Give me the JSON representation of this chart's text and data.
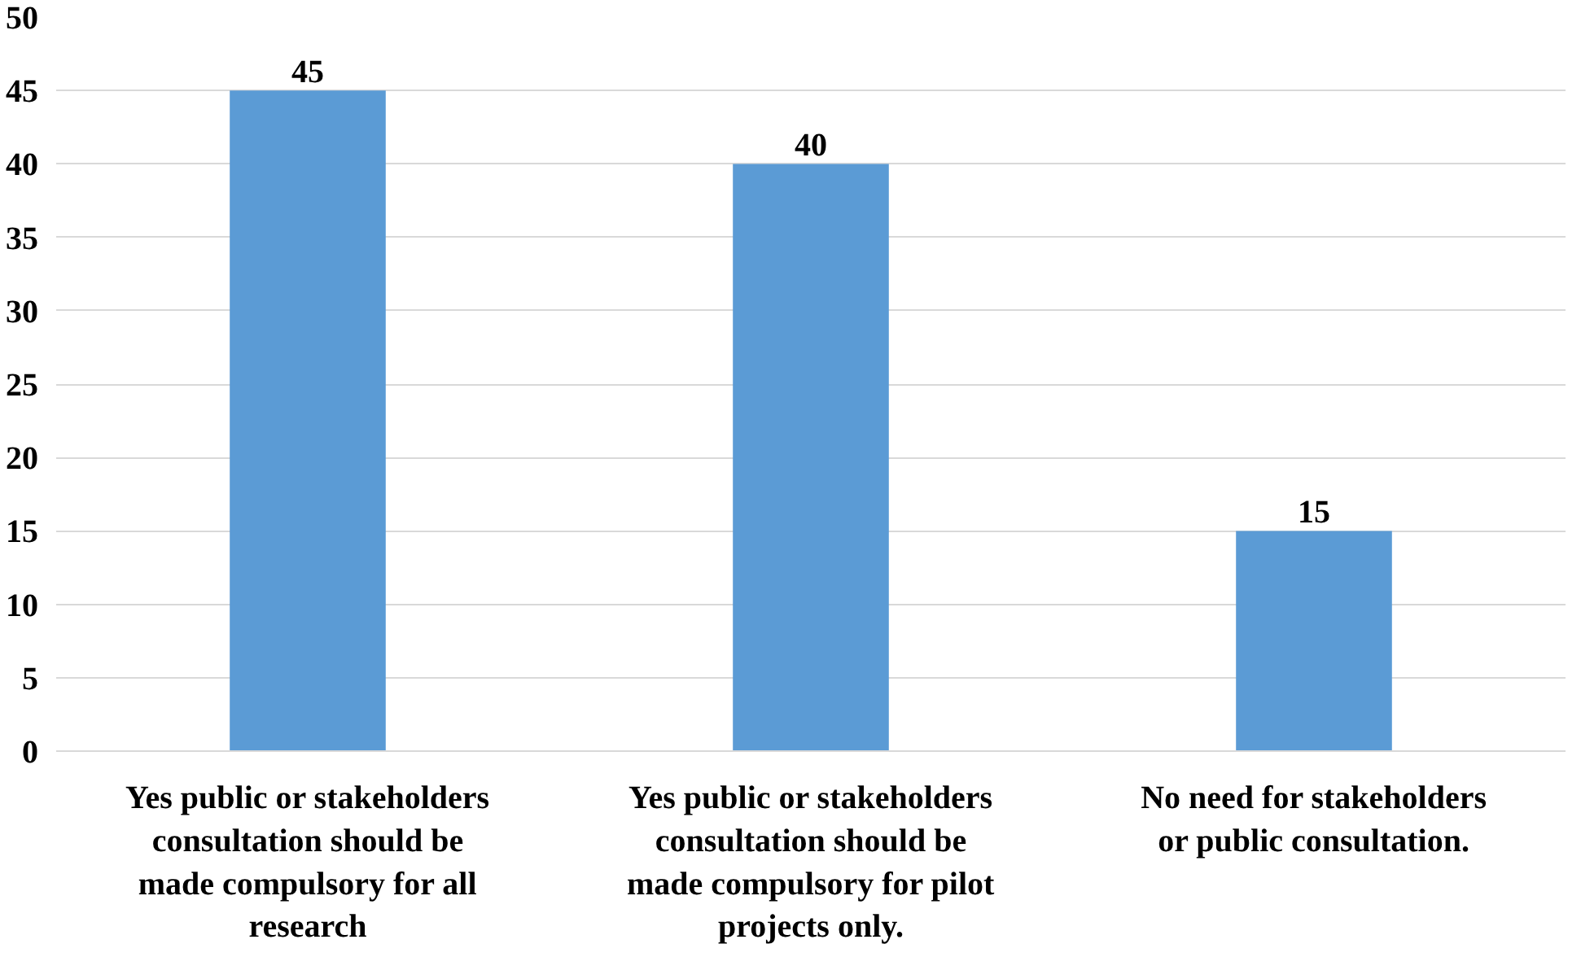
{
  "chart_data": {
    "type": "bar",
    "categories": [
      "Yes public or stakeholders consultation should be made compulsory for all research",
      "Yes public or stakeholders consultation should be made compulsory for pilot projects only.",
      "No need for stakeholders or public consultation."
    ],
    "values": [
      45,
      40,
      15
    ],
    "color": "#5b9bd5",
    "ylim": [
      0,
      50
    ],
    "yticks": [
      0,
      5,
      10,
      15,
      20,
      25,
      30,
      35,
      40,
      45,
      50
    ],
    "grid": "y",
    "data_labels": true
  }
}
